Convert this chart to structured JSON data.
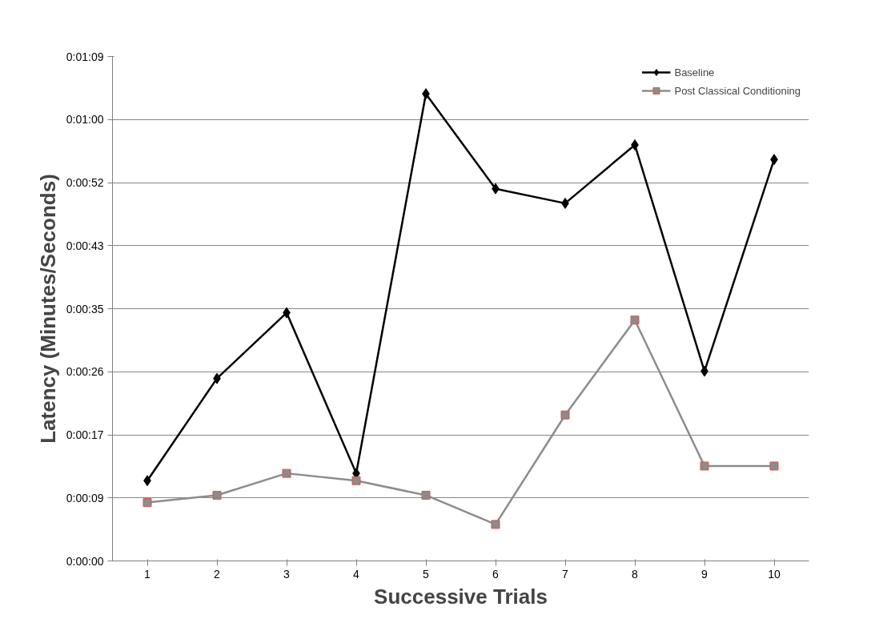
{
  "chart_data": {
    "type": "line",
    "xlabel": "Successive Trials",
    "ylabel": "Latency (Minutes/Seconds)",
    "categories": [
      "1",
      "2",
      "3",
      "4",
      "5",
      "6",
      "7",
      "8",
      "9",
      "10"
    ],
    "series": [
      {
        "name": "Baseline",
        "color": "#000000",
        "marker": "diamond",
        "values": [
          11,
          25,
          34,
          12,
          64,
          51,
          49,
          57,
          26,
          55
        ]
      },
      {
        "name": "Post Classical Conditioning",
        "color": "#8c8c8c",
        "marker": "square",
        "values": [
          8,
          9,
          12,
          11,
          9,
          5,
          20,
          33,
          13,
          13
        ]
      }
    ],
    "ylim": [
      0,
      69.12
    ],
    "yticks": [
      {
        "value": 0,
        "label": "0:00:00"
      },
      {
        "value": 8.64,
        "label": "0:00:09"
      },
      {
        "value": 17.28,
        "label": "0:00:17"
      },
      {
        "value": 25.92,
        "label": "0:00:26"
      },
      {
        "value": 34.56,
        "label": "0:00:35"
      },
      {
        "value": 43.2,
        "label": "0:00:43"
      },
      {
        "value": 51.84,
        "label": "0:00:52"
      },
      {
        "value": 60.48,
        "label": "0:01:00"
      },
      {
        "value": 69.12,
        "label": "0:01:09"
      }
    ],
    "grid": "y",
    "legend": "top right"
  }
}
